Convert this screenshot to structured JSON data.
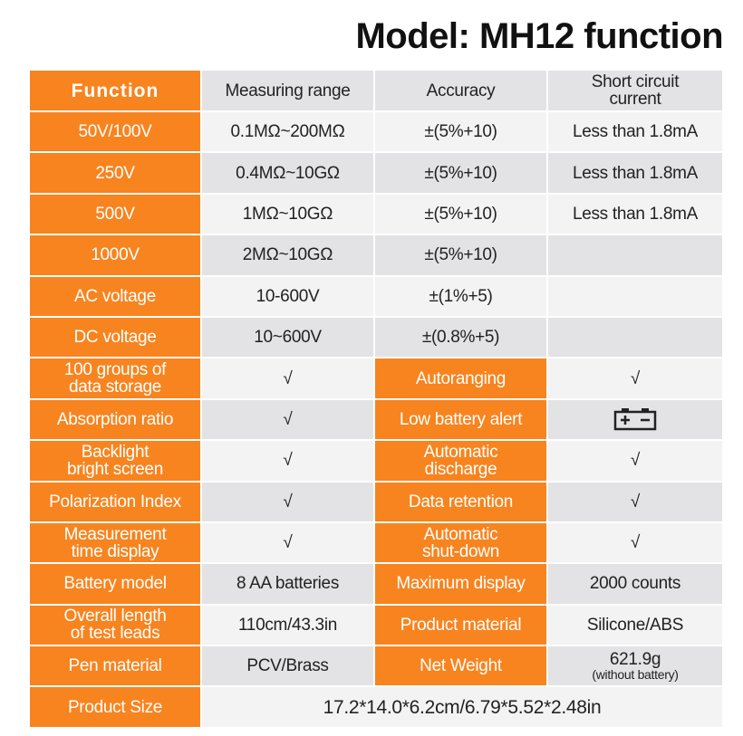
{
  "header": {
    "title": "Model: MH12 function"
  },
  "table": {
    "header": [
      "Function",
      "Measuring range",
      "Accuracy",
      "Short circuit\ncurrent"
    ],
    "rows": [
      [
        "50V/100V",
        "0.1MΩ~200MΩ",
        "±(5%+10)",
        "Less than 1.8mA"
      ],
      [
        "250V",
        "0.4MΩ~10GΩ",
        "±(5%+10)",
        "Less than 1.8mA"
      ],
      [
        "500V",
        "1MΩ~10GΩ",
        "±(5%+10)",
        "Less than 1.8mA"
      ],
      [
        "1000V",
        "2MΩ~10GΩ",
        "±(5%+10)"
      ],
      [
        "AC voltage",
        "10-600V",
        "±(1%+5)"
      ],
      [
        "DC voltage",
        "10~600V",
        "±(0.8%+5)"
      ],
      [
        "100 groups of\ndata storage",
        "√",
        "Autoranging",
        "√"
      ],
      [
        "Absorption ratio",
        "√",
        "Low battery alert"
      ],
      [
        "Backlight\nbright screen",
        "√",
        "Automatic\ndischarge",
        "√"
      ],
      [
        "Polarization Index",
        "√",
        "Data retention",
        "√"
      ],
      [
        "Measurement\ntime display",
        "√",
        "Automatic\nshut-down",
        "√"
      ],
      [
        "Battery model",
        "8 AA batteries",
        "Maximum display",
        "2000 counts"
      ],
      [
        "Overall length\nof test leads",
        "110cm/43.3in",
        "Product material",
        "Silicone/ABS"
      ],
      [
        "Pen material",
        "PCV/Brass",
        "Net Weight",
        "621.9g",
        "(without battery)"
      ],
      [
        "Product Size",
        "17.2*14.0*6.2cm/6.79*5.52*2.48in"
      ]
    ]
  }
}
